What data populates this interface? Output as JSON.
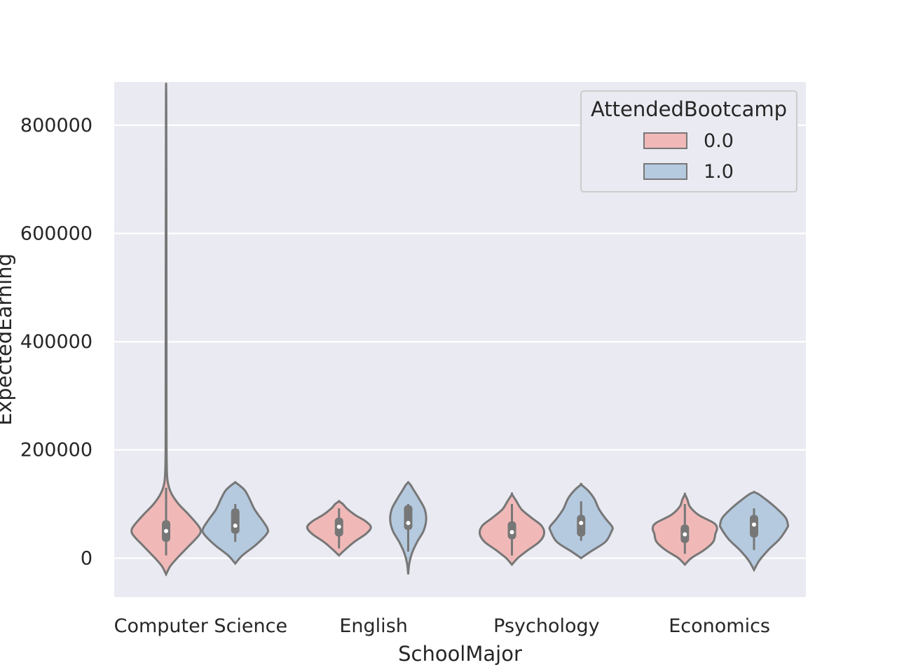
{
  "chart_data": {
    "type": "violin",
    "title": "",
    "xlabel": "SchoolMajor",
    "ylabel": "ExpectedEarning",
    "ylim": [
      -72000,
      880000
    ],
    "yticks": [
      0,
      200000,
      400000,
      600000,
      800000
    ],
    "ytick_labels": [
      "0",
      "200000",
      "400000",
      "600000",
      "800000"
    ],
    "grid": true,
    "categories": [
      "Computer Science",
      "English",
      "Psychology",
      "Economics"
    ],
    "legend": {
      "title": "AttendedBootcamp",
      "placement": "top-right",
      "entries": [
        "0.0",
        "1.0"
      ]
    },
    "colors": {
      "background": "#eaeaf2",
      "gridline": "#ffffff",
      "outline": "#777777",
      "series": [
        "#f0b9b8",
        "#b5cadf"
      ]
    },
    "series": [
      {
        "name": "0.0",
        "violins": [
          {
            "category": "Computer Science",
            "min": -30000,
            "max": 835000,
            "q1": 30000,
            "median": 50000,
            "q3": 70000,
            "whisker_low": 5000,
            "whisker_high": 130000,
            "peak": 50000,
            "peak_width": 1.0,
            "density": [
              [
                -30000,
                0.0
              ],
              [
                -15000,
                0.12
              ],
              [
                0,
                0.32
              ],
              [
                20000,
                0.62
              ],
              [
                40000,
                0.92
              ],
              [
                50000,
                1.0
              ],
              [
                60000,
                0.93
              ],
              [
                80000,
                0.66
              ],
              [
                100000,
                0.36
              ],
              [
                120000,
                0.15
              ],
              [
                140000,
                0.05
              ],
              [
                170000,
                0.02
              ],
              [
                250000,
                0.012
              ],
              [
                500000,
                0.01
              ],
              [
                835000,
                0.005
              ]
            ]
          },
          {
            "category": "English",
            "min": 5000,
            "max": 105000,
            "q1": 40000,
            "median": 58000,
            "q3": 75000,
            "whisker_low": 18000,
            "whisker_high": 92000,
            "peak": 57000,
            "peak_width": 0.92,
            "density": [
              [
                5000,
                0.0
              ],
              [
                15000,
                0.18
              ],
              [
                30000,
                0.48
              ],
              [
                45000,
                0.85
              ],
              [
                57000,
                1.0
              ],
              [
                68000,
                0.84
              ],
              [
                80000,
                0.5
              ],
              [
                92000,
                0.24
              ],
              [
                100000,
                0.12
              ],
              [
                105000,
                0.0
              ]
            ]
          },
          {
            "category": "Psychology",
            "min": -12000,
            "max": 118000,
            "q1": 35000,
            "median": 48000,
            "q3": 68000,
            "whisker_low": 5000,
            "whisker_high": 100000,
            "peak": 48000,
            "peak_width": 0.93,
            "density": [
              [
                -12000,
                0.0
              ],
              [
                0,
                0.18
              ],
              [
                15000,
                0.5
              ],
              [
                30000,
                0.85
              ],
              [
                45000,
                1.0
              ],
              [
                60000,
                0.92
              ],
              [
                75000,
                0.6
              ],
              [
                90000,
                0.3
              ],
              [
                105000,
                0.14
              ],
              [
                118000,
                0.0
              ]
            ]
          },
          {
            "category": "Economics",
            "min": -12000,
            "max": 118000,
            "q1": 28000,
            "median": 44000,
            "q3": 62000,
            "whisker_low": 8000,
            "whisker_high": 100000,
            "peak": 55000,
            "peak_width": 0.93,
            "density": [
              [
                -12000,
                0.0
              ],
              [
                0,
                0.2
              ],
              [
                15000,
                0.6
              ],
              [
                30000,
                0.88
              ],
              [
                45000,
                0.95
              ],
              [
                55000,
                1.0
              ],
              [
                65000,
                0.9
              ],
              [
                80000,
                0.42
              ],
              [
                95000,
                0.16
              ],
              [
                108000,
                0.08
              ],
              [
                118000,
                0.0
              ]
            ]
          }
        ]
      },
      {
        "name": "1.0",
        "violins": [
          {
            "category": "Computer Science",
            "min": -10000,
            "max": 140000,
            "q1": 45000,
            "median": 60000,
            "q3": 92000,
            "whisker_low": 30000,
            "whisker_high": 100000,
            "peak": 50000,
            "peak_width": 0.93,
            "density": [
              [
                -10000,
                0.0
              ],
              [
                5000,
                0.22
              ],
              [
                25000,
                0.65
              ],
              [
                45000,
                0.98
              ],
              [
                55000,
                1.0
              ],
              [
                70000,
                0.84
              ],
              [
                90000,
                0.6
              ],
              [
                110000,
                0.44
              ],
              [
                125000,
                0.3
              ],
              [
                135000,
                0.12
              ],
              [
                140000,
                0.0
              ]
            ]
          },
          {
            "category": "English",
            "min": -30000,
            "max": 140000,
            "q1": 52000,
            "median": 65000,
            "q3": 98000,
            "whisker_low": 12000,
            "whisker_high": 100000,
            "peak": 70000,
            "peak_width": 0.52,
            "density": [
              [
                -30000,
                0.0
              ],
              [
                -10000,
                0.06
              ],
              [
                10000,
                0.22
              ],
              [
                30000,
                0.5
              ],
              [
                50000,
                0.85
              ],
              [
                70000,
                1.0
              ],
              [
                90000,
                0.92
              ],
              [
                110000,
                0.6
              ],
              [
                125000,
                0.32
              ],
              [
                135000,
                0.14
              ],
              [
                140000,
                0.0
              ]
            ]
          },
          {
            "category": "Psychology",
            "min": 0,
            "max": 136000,
            "q1": 40000,
            "median": 65000,
            "q3": 80000,
            "whisker_low": 32000,
            "whisker_high": 105000,
            "peak": 55000,
            "peak_width": 0.9,
            "density": [
              [
                0,
                0.0
              ],
              [
                12000,
                0.3
              ],
              [
                30000,
                0.78
              ],
              [
                50000,
                0.98
              ],
              [
                58000,
                1.0
              ],
              [
                72000,
                0.8
              ],
              [
                90000,
                0.58
              ],
              [
                110000,
                0.42
              ],
              [
                125000,
                0.22
              ],
              [
                136000,
                0.0
              ]
            ]
          },
          {
            "category": "Economics",
            "min": -22000,
            "max": 122000,
            "q1": 38000,
            "median": 62000,
            "q3": 80000,
            "whisker_low": 15000,
            "whisker_high": 92000,
            "peak": 62000,
            "peak_width": 0.98,
            "density": [
              [
                -22000,
                0.0
              ],
              [
                -5000,
                0.15
              ],
              [
                15000,
                0.42
              ],
              [
                35000,
                0.75
              ],
              [
                55000,
                0.97
              ],
              [
                62000,
                1.0
              ],
              [
                75000,
                0.93
              ],
              [
                90000,
                0.7
              ],
              [
                105000,
                0.42
              ],
              [
                118000,
                0.14
              ],
              [
                122000,
                0.0
              ]
            ]
          }
        ]
      }
    ]
  }
}
